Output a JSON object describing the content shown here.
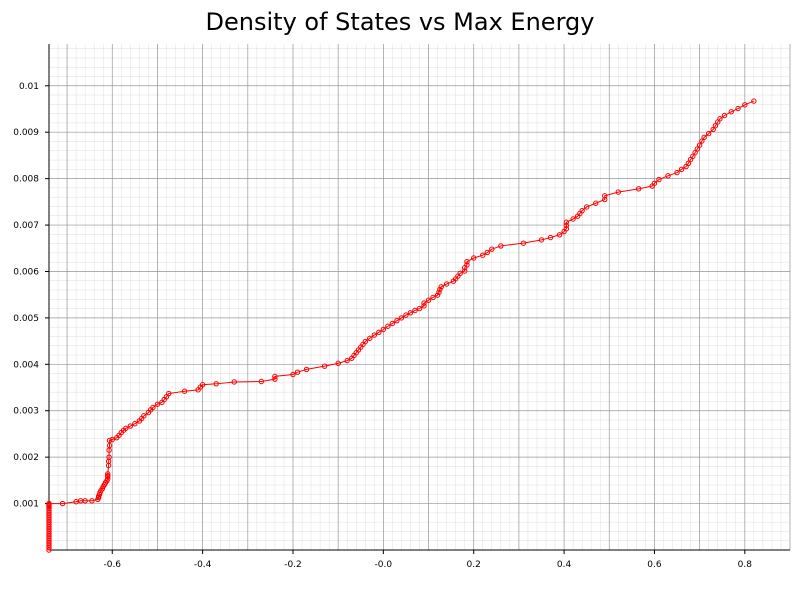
{
  "chart_data": {
    "type": "line",
    "title": "Density of States vs Max Energy",
    "xlabel": "",
    "ylabel": "",
    "xlim": [
      -0.74,
      0.9
    ],
    "ylim": [
      0.0,
      0.0109
    ],
    "grid": "major and minor",
    "markers": "open circles",
    "colors": {
      "series": "#ff0000",
      "major_grid": "#999999",
      "minor_grid": "#dddddd",
      "axis": "#000000"
    },
    "x_ticks": [
      -0.6,
      -0.4,
      -0.2,
      0.0,
      0.2,
      0.4,
      0.6,
      0.8
    ],
    "x_tick_labels": [
      "-0.6",
      "-0.4",
      "-0.2",
      "-0.0",
      "0.2",
      "0.4",
      "0.6",
      "0.8"
    ],
    "y_ticks": [
      0.001,
      0.002,
      0.003,
      0.004,
      0.005,
      0.006,
      0.007,
      0.008,
      0.009,
      0.01
    ],
    "y_tick_labels": [
      "0.001",
      "0.002",
      "0.003",
      "0.004",
      "0.005",
      "0.006",
      "0.007",
      "0.008",
      "0.009",
      "0.01"
    ],
    "series": [
      {
        "x": [
          -0.74,
          -0.74,
          -0.74,
          -0.74,
          -0.74,
          -0.74,
          -0.74,
          -0.74,
          -0.74,
          -0.74,
          -0.74,
          -0.74,
          -0.74,
          -0.74,
          -0.74,
          -0.74,
          -0.74,
          -0.74,
          -0.74,
          -0.74,
          -0.74,
          -0.74,
          -0.74,
          -0.71,
          -0.68,
          -0.67,
          -0.66,
          -0.645,
          -0.632,
          -0.63,
          -0.63,
          -0.628,
          -0.627,
          -0.625,
          -0.622,
          -0.62,
          -0.617,
          -0.615,
          -0.612,
          -0.61,
          -0.61,
          -0.61,
          -0.61,
          -0.608,
          -0.608,
          -0.607,
          -0.607,
          -0.606,
          -0.606,
          -0.6,
          -0.59,
          -0.585,
          -0.58,
          -0.575,
          -0.57,
          -0.56,
          -0.55,
          -0.54,
          -0.535,
          -0.53,
          -0.52,
          -0.515,
          -0.51,
          -0.5,
          -0.49,
          -0.485,
          -0.48,
          -0.475,
          -0.44,
          -0.41,
          -0.405,
          -0.4,
          -0.37,
          -0.33,
          -0.27,
          -0.24,
          -0.24,
          -0.2,
          -0.19,
          -0.17,
          -0.13,
          -0.1,
          -0.08,
          -0.07,
          -0.065,
          -0.06,
          -0.055,
          -0.05,
          -0.045,
          -0.04,
          -0.03,
          -0.02,
          -0.01,
          0.0,
          0.01,
          0.02,
          0.03,
          0.04,
          0.05,
          0.06,
          0.07,
          0.08,
          0.09,
          0.09,
          0.1,
          0.11,
          0.12,
          0.123,
          0.125,
          0.128,
          0.14,
          0.155,
          0.16,
          0.165,
          0.17,
          0.18,
          0.18,
          0.185,
          0.185,
          0.2,
          0.22,
          0.23,
          0.24,
          0.26,
          0.31,
          0.35,
          0.37,
          0.39,
          0.4,
          0.405,
          0.405,
          0.405,
          0.42,
          0.43,
          0.435,
          0.44,
          0.45,
          0.47,
          0.49,
          0.49,
          0.52,
          0.565,
          0.595,
          0.6,
          0.61,
          0.63,
          0.65,
          0.66,
          0.67,
          0.675,
          0.68,
          0.685,
          0.69,
          0.695,
          0.7,
          0.705,
          0.71,
          0.72,
          0.73,
          0.735,
          0.74,
          0.745,
          0.755,
          0.77,
          0.785,
          0.8,
          0.82
        ],
        "y": [
          0.0,
          5e-05,
          0.0001,
          0.00015,
          0.0002,
          0.00025,
          0.0003,
          0.00035,
          0.0004,
          0.00045,
          0.0005,
          0.00055,
          0.0006,
          0.00065,
          0.0007,
          0.00075,
          0.0008,
          0.00085,
          0.0009,
          0.00093,
          0.00096,
          0.00098,
          0.001,
          0.001,
          0.00104,
          0.00106,
          0.00106,
          0.00106,
          0.00109,
          0.00113,
          0.00116,
          0.0012,
          0.00124,
          0.00128,
          0.00132,
          0.00137,
          0.00141,
          0.00145,
          0.00149,
          0.00153,
          0.00158,
          0.0016,
          0.00164,
          0.00182,
          0.00191,
          0.002,
          0.00215,
          0.00225,
          0.00236,
          0.00238,
          0.00242,
          0.00247,
          0.00253,
          0.00258,
          0.00262,
          0.00267,
          0.00272,
          0.00278,
          0.00283,
          0.00289,
          0.00296,
          0.00302,
          0.00307,
          0.00314,
          0.00318,
          0.00324,
          0.0033,
          0.00337,
          0.00342,
          0.00345,
          0.00351,
          0.00356,
          0.00358,
          0.00362,
          0.00363,
          0.00368,
          0.00374,
          0.00378,
          0.00383,
          0.00389,
          0.00396,
          0.00402,
          0.00408,
          0.00413,
          0.00419,
          0.00425,
          0.00431,
          0.00437,
          0.00443,
          0.00449,
          0.00456,
          0.00463,
          0.00469,
          0.00475,
          0.00482,
          0.00488,
          0.00494,
          0.005,
          0.00506,
          0.00511,
          0.00516,
          0.0052,
          0.00526,
          0.00532,
          0.00538,
          0.00544,
          0.00549,
          0.00555,
          0.00561,
          0.00567,
          0.00573,
          0.00579,
          0.00584,
          0.0059,
          0.00596,
          0.00601,
          0.00608,
          0.00614,
          0.00621,
          0.00629,
          0.00635,
          0.00641,
          0.00648,
          0.00655,
          0.00661,
          0.00668,
          0.00673,
          0.00679,
          0.00686,
          0.00692,
          0.00699,
          0.00706,
          0.00713,
          0.00719,
          0.00725,
          0.00731,
          0.00739,
          0.00747,
          0.00755,
          0.00763,
          0.00771,
          0.00778,
          0.00784,
          0.0079,
          0.00798,
          0.00806,
          0.00813,
          0.0082,
          0.00826,
          0.00833,
          0.00841,
          0.00848,
          0.00856,
          0.00864,
          0.00872,
          0.00881,
          0.00889,
          0.00897,
          0.00906,
          0.00914,
          0.00922,
          0.00929,
          0.00936,
          0.00944,
          0.00951,
          0.00959,
          0.00967
        ]
      }
    ]
  }
}
